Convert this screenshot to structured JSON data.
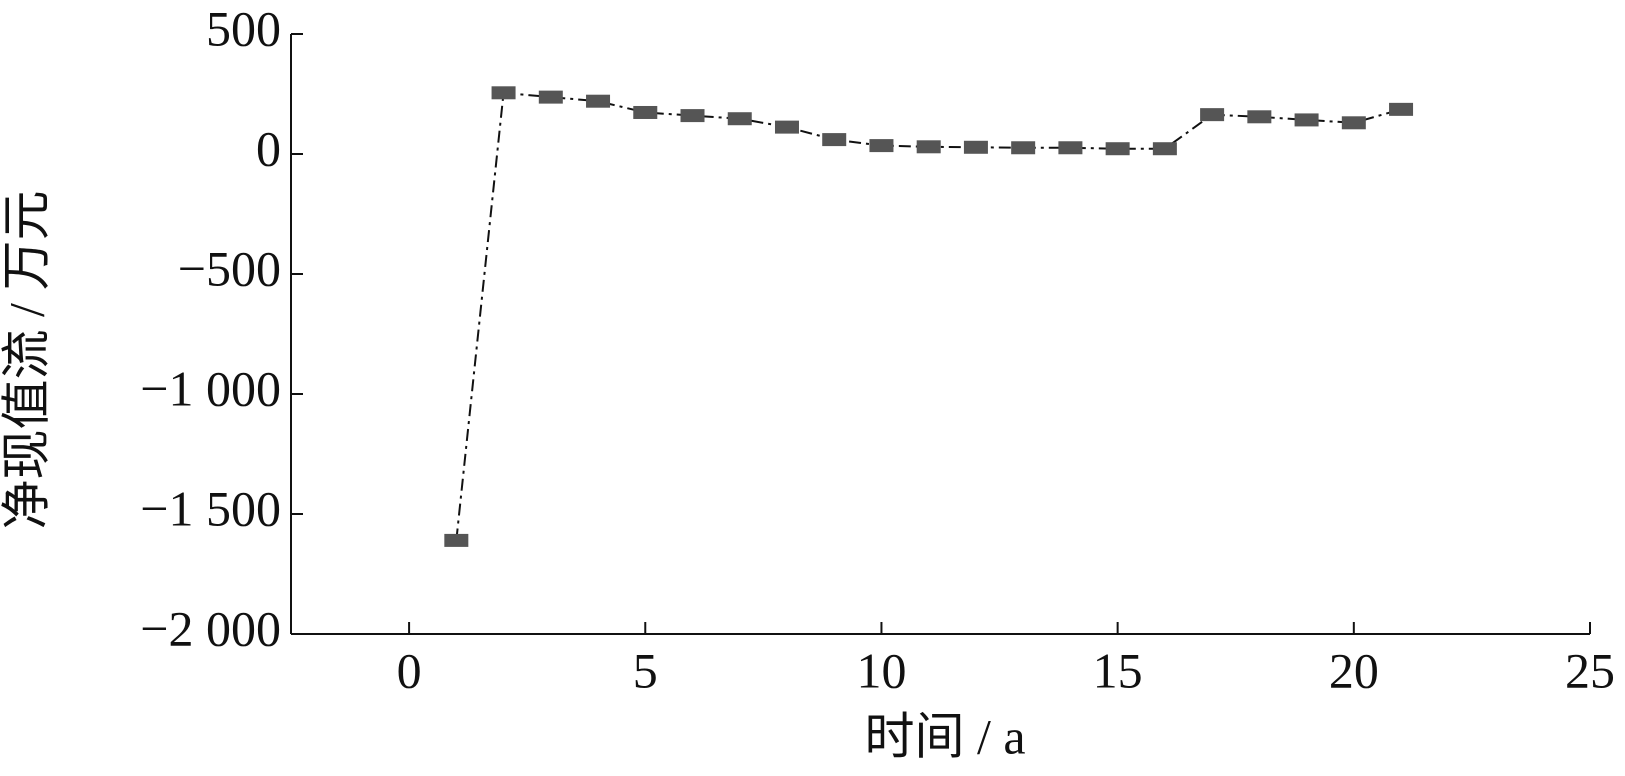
{
  "chart_data": {
    "type": "line",
    "x_label": "时间 / a",
    "y_label": "净现值流 / 万元",
    "x": [
      1,
      2,
      3,
      4,
      5,
      6,
      7,
      8,
      9,
      10,
      11,
      12,
      13,
      14,
      15,
      16,
      17,
      18,
      19,
      20,
      21
    ],
    "series": [
      {
        "color": "#555555",
        "values": [
          -1610,
          255,
          237,
          220,
          173,
          160,
          147,
          112,
          60,
          35,
          30,
          28,
          26,
          26,
          22,
          22,
          164,
          155,
          142,
          130,
          186
        ]
      }
    ],
    "xlim": [
      -2.5,
      25
    ],
    "xticks": [
      0,
      5,
      10,
      15,
      20,
      25
    ],
    "ylim": [
      -2000,
      500
    ],
    "yticks": [
      500,
      0,
      {
        "value": -500,
        "label": "−500"
      },
      {
        "value": -1000,
        "label": "−1 000"
      },
      {
        "value": -1500,
        "label": "−1 500"
      },
      {
        "value": -2000,
        "label": "−2 000"
      }
    ]
  }
}
